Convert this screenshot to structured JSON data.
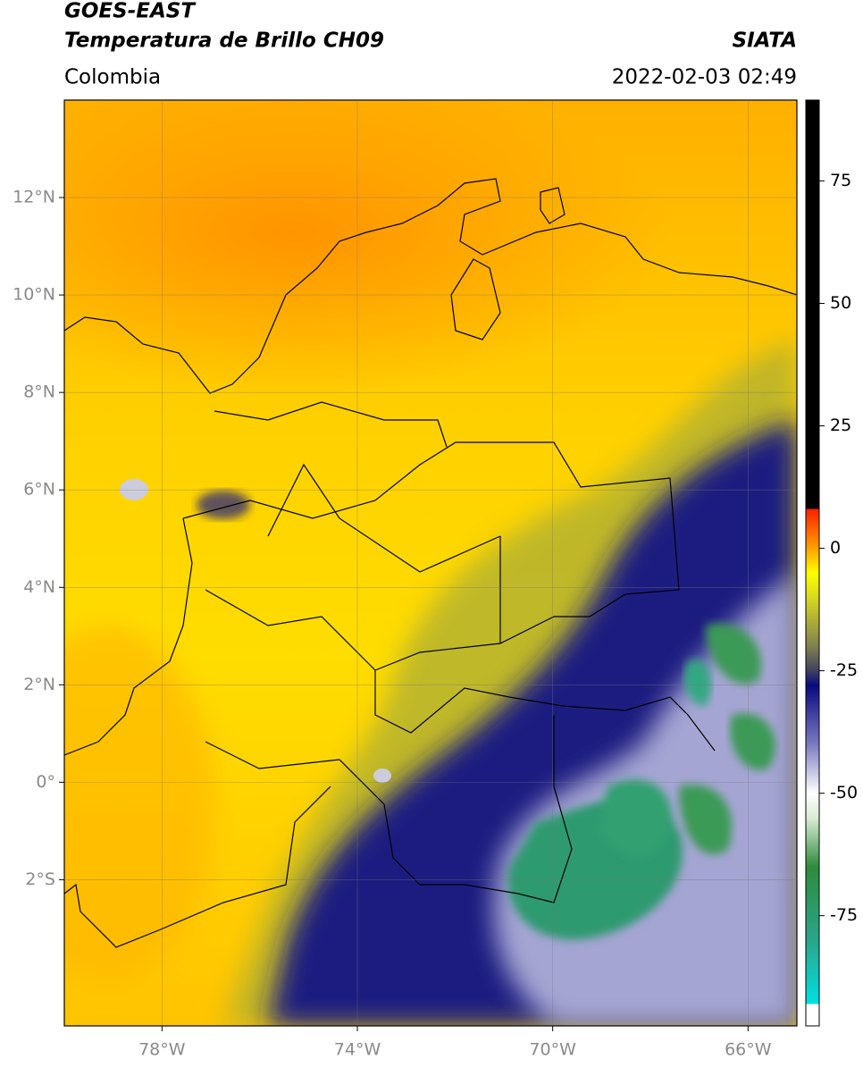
{
  "header": {
    "title": "GOES-EAST",
    "subtitle": "Temperatura de Brillo CH09",
    "region": "Colombia",
    "source": "SIATA",
    "datetime": "2022-02-03 02:49"
  },
  "map": {
    "xlim": [
      -80,
      -65
    ],
    "ylim": [
      -5,
      14
    ],
    "grid": true,
    "xticks": [
      {
        "value": -78,
        "label": "78°W"
      },
      {
        "value": -74,
        "label": "74°W"
      },
      {
        "value": -70,
        "label": "70°W"
      },
      {
        "value": -66,
        "label": "66°W"
      }
    ],
    "yticks": [
      {
        "value": 12,
        "label": "12°N"
      },
      {
        "value": 10,
        "label": "10°N"
      },
      {
        "value": 8,
        "label": "8°N"
      },
      {
        "value": 6,
        "label": "6°N"
      },
      {
        "value": 4,
        "label": "4°N"
      },
      {
        "value": 2,
        "label": "2°N"
      },
      {
        "value": 0,
        "label": "0°"
      },
      {
        "value": -2,
        "label": "2°S"
      }
    ]
  },
  "colorbar": {
    "lim": [
      -97.5,
      91.5
    ],
    "ticks": [
      75,
      50,
      25,
      0,
      -25,
      -50,
      -75
    ],
    "stops": [
      {
        "value": -97.5,
        "color": "#ffffff"
      },
      {
        "value": -93,
        "color": "#ffffff"
      },
      {
        "value": -93,
        "color": "#00e0e0"
      },
      {
        "value": -80,
        "color": "#2aa58a"
      },
      {
        "value": -65,
        "color": "#2e8b3e"
      },
      {
        "value": -55,
        "color": "#d9ecd4"
      },
      {
        "value": -50,
        "color": "#ffffff"
      },
      {
        "value": -40,
        "color": "#7a7ac0"
      },
      {
        "value": -28,
        "color": "#0a0a80"
      },
      {
        "value": -25,
        "color": "#404060"
      },
      {
        "value": -20,
        "color": "#808050"
      },
      {
        "value": -10,
        "color": "#d8d820"
      },
      {
        "value": -5,
        "color": "#ffff00"
      },
      {
        "value": 0,
        "color": "#ffa000"
      },
      {
        "value": 8,
        "color": "#ff2000"
      },
      {
        "value": 8,
        "color": "#000000"
      },
      {
        "value": 91.5,
        "color": "#000000"
      }
    ]
  }
}
